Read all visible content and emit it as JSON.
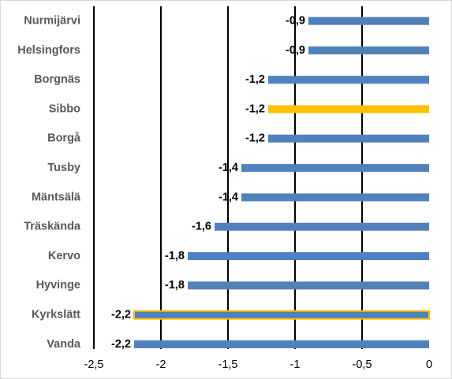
{
  "chart_data": {
    "type": "bar",
    "orientation": "horizontal",
    "title": "",
    "xlabel": "",
    "ylabel": "",
    "xlim": [
      -2.5,
      0
    ],
    "x_ticks": [
      -2.5,
      -2,
      -1.5,
      -1,
      -0.5,
      0
    ],
    "x_tick_labels": [
      "-2,5",
      "-2",
      "-1,5",
      "-1",
      "-0,5",
      "0"
    ],
    "grid": "vertical gridlines",
    "legend": "none",
    "categories": [
      "Nurmijärvi",
      "Helsingfors",
      "Borgnäs",
      "Sibbo",
      "Borgå",
      "Tusby",
      "Mäntsälä",
      "Träskända",
      "Kervo",
      "Hyvinge",
      "Kyrkslätt",
      "Vanda"
    ],
    "values": [
      -0.9,
      -0.9,
      -1.2,
      -1.2,
      -1.2,
      -1.4,
      -1.4,
      -1.6,
      -1.8,
      -1.8,
      -2.2,
      -2.2
    ],
    "data_labels": [
      "-0,9",
      "-0,9",
      "-1,2",
      "-1,2",
      "-1,2",
      "-1,4",
      "-1,4",
      "-1,6",
      "-1,8",
      "-1,8",
      "-2,2",
      "-2,2"
    ],
    "highlighted_categories": [
      "Sibbo",
      "Kyrkslätt"
    ],
    "colors": {
      "bar": "#4f81bd",
      "highlight_fill": "#ffc000",
      "highlight_outline": "#ffc000",
      "gridline": "#000000",
      "category_text": "#595959",
      "value_text": "#000000"
    }
  }
}
